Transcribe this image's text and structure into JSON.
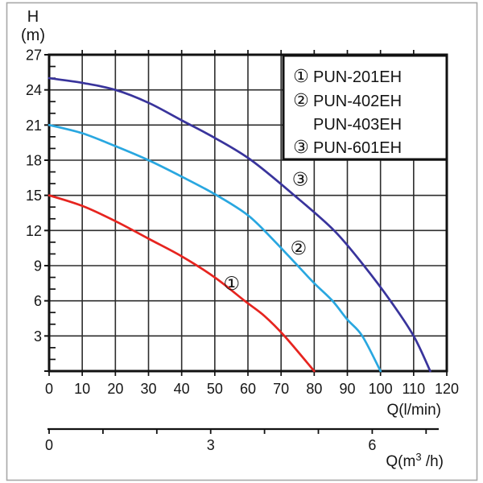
{
  "chart_data": {
    "type": "line",
    "title": "",
    "ylabel_lines": [
      "H",
      "(m)"
    ],
    "xlabel": "Q(l/min)",
    "x2label": {
      "prefix": "Q(m",
      "sup": "3",
      "suffix": " /h)"
    },
    "xlim": [
      0,
      120
    ],
    "ylim": [
      0,
      27
    ],
    "x_ticks": [
      0,
      10,
      20,
      30,
      40,
      50,
      60,
      70,
      80,
      90,
      100,
      110,
      120
    ],
    "y_ticks": [
      3,
      6,
      9,
      12,
      15,
      18,
      21,
      24,
      27
    ],
    "y_minor_step": 1,
    "x2_ticks": [
      0,
      1,
      2,
      3,
      4,
      5,
      6,
      7
    ],
    "x2_tick_labels": [
      "0",
      "",
      "",
      "3",
      "",
      "",
      "6",
      ""
    ],
    "grid": true,
    "legend_position": "top-right",
    "series": [
      {
        "name": "PUN-201EH",
        "marker": "①",
        "color": "#e6241f",
        "points": [
          [
            0,
            15
          ],
          [
            10,
            14.1
          ],
          [
            20,
            12.8
          ],
          [
            30,
            11.3
          ],
          [
            40,
            9.8
          ],
          [
            50,
            8.0
          ],
          [
            59,
            6.0
          ],
          [
            65,
            4.7
          ],
          [
            71,
            3.0
          ],
          [
            80,
            0
          ]
        ]
      },
      {
        "name": "PUN-402EH / PUN-403EH",
        "marker": "②",
        "color": "#29a7e0",
        "points": [
          [
            0,
            21
          ],
          [
            10,
            20.3
          ],
          [
            20,
            19.2
          ],
          [
            30,
            18.0
          ],
          [
            40,
            16.6
          ],
          [
            50,
            15.1
          ],
          [
            60,
            13.3
          ],
          [
            68,
            11.1
          ],
          [
            75,
            9.0
          ],
          [
            80,
            7.5
          ],
          [
            85.5,
            6.0
          ],
          [
            90,
            4.4
          ],
          [
            94.5,
            3.0
          ],
          [
            100,
            0
          ]
        ]
      },
      {
        "name": "PUN-601EH",
        "marker": "③",
        "color": "#39349c",
        "points": [
          [
            0,
            25
          ],
          [
            10,
            24.6
          ],
          [
            20,
            24.0
          ],
          [
            30,
            22.9
          ],
          [
            40,
            21.4
          ],
          [
            50,
            19.9
          ],
          [
            61,
            18.0
          ],
          [
            74,
            15.0
          ],
          [
            86,
            12.0
          ],
          [
            95,
            9.0
          ],
          [
            103,
            6.0
          ],
          [
            110,
            3.0
          ],
          [
            115,
            0
          ]
        ]
      }
    ],
    "annotations": [
      {
        "text": "①",
        "q": 55.1,
        "h": 7.5
      },
      {
        "text": "②",
        "q": 75.3,
        "h": 10.5
      },
      {
        "text": "③",
        "q": 75.8,
        "h": 16.4
      }
    ],
    "legend": {
      "entries": [
        {
          "marker": "①",
          "label": "PUN-201EH"
        },
        {
          "marker": "②",
          "label": "PUN-402EH"
        },
        {
          "marker": "",
          "label": "PUN-403EH"
        },
        {
          "marker": "③",
          "label": "PUN-601EH"
        }
      ]
    }
  },
  "colors": {
    "grid": "#2d2d2d",
    "border": "#111111",
    "frame": "#a8a8a8",
    "text": "#151515"
  }
}
